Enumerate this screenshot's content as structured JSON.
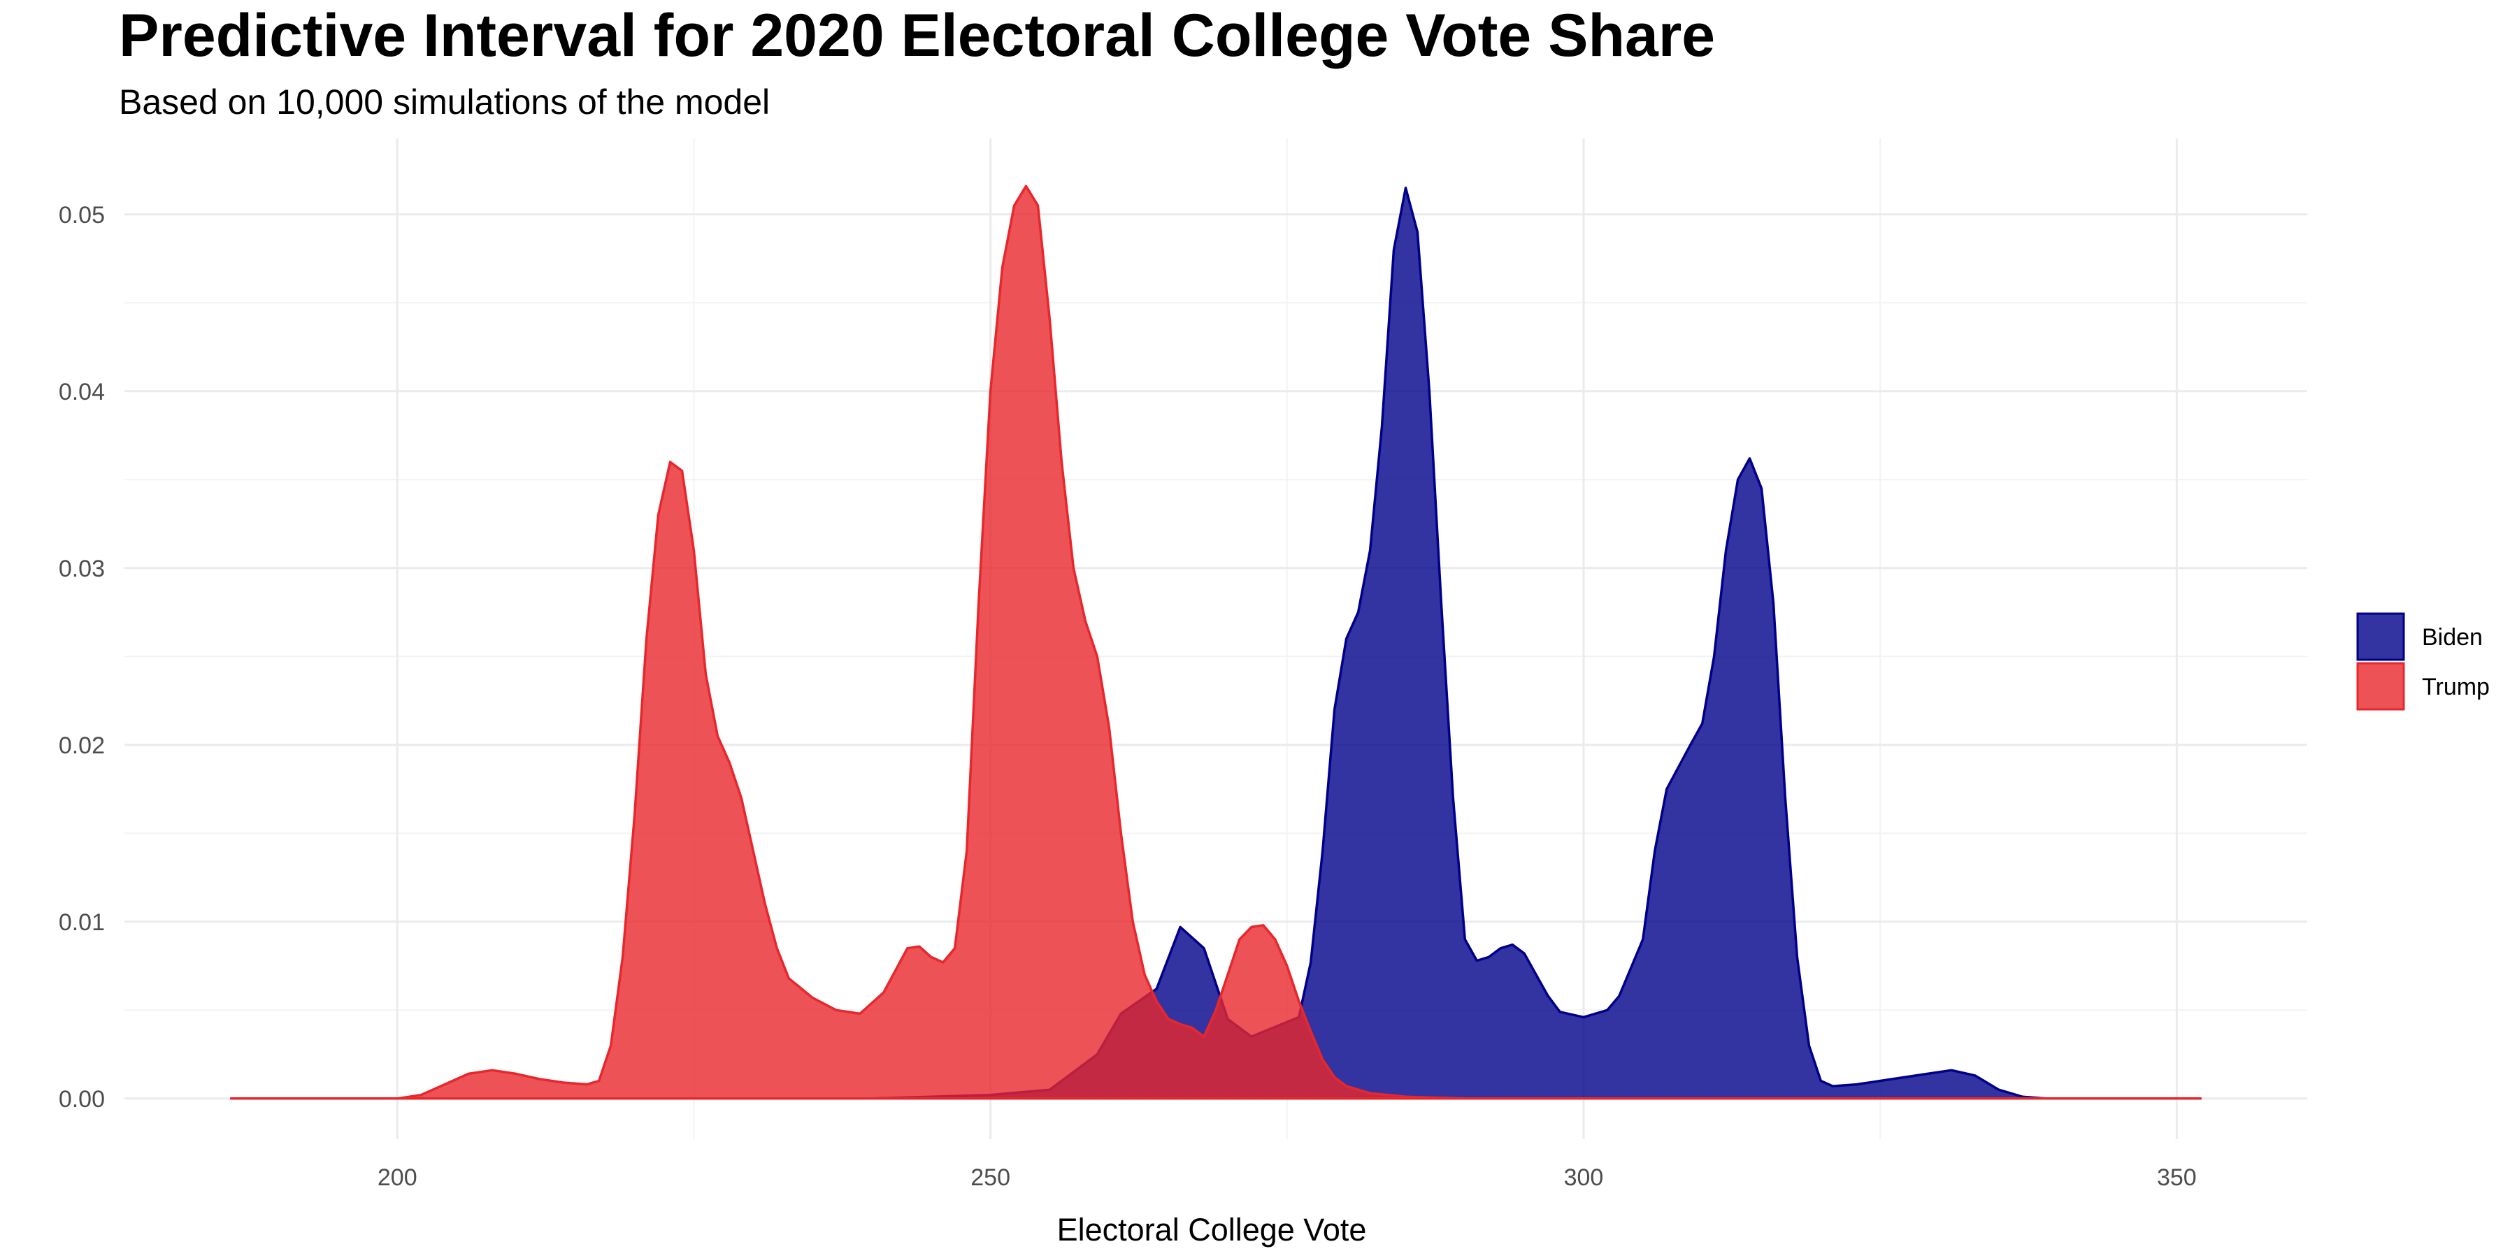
{
  "chart_data": {
    "type": "area",
    "title": "Predictive Interval for 2020 Electoral College Vote Share",
    "subtitle": "Based on 10,000 simulations of the model",
    "xlabel": "Electoral College Vote",
    "ylabel": "",
    "xlim": [
      177,
      361
    ],
    "ylim": [
      -0.0023,
      0.0543
    ],
    "x_ticks": [
      200,
      250,
      300,
      350
    ],
    "x_tick_labels": [
      "200",
      "250",
      "300",
      "350"
    ],
    "y_ticks": [
      0,
      0.01,
      0.02,
      0.03,
      0.04,
      0.05
    ],
    "y_tick_labels": [
      "0.00",
      "0.01",
      "0.02",
      "0.03",
      "0.04",
      "0.05"
    ],
    "grid": true,
    "legend": {
      "placement": "right"
    },
    "series": [
      {
        "name": "Biden",
        "fill": "#00008b",
        "stroke": "#00008b",
        "opacity": 0.8,
        "points": [
          [
            186,
            0
          ],
          [
            200,
            0
          ],
          [
            220,
            0
          ],
          [
            240,
            0
          ],
          [
            250,
            0.0002
          ],
          [
            255,
            0.0005
          ],
          [
            259,
            0.0025
          ],
          [
            261,
            0.0048
          ],
          [
            264,
            0.0062
          ],
          [
            266,
            0.0097
          ],
          [
            268,
            0.0085
          ],
          [
            270,
            0.0045
          ],
          [
            272,
            0.0035
          ],
          [
            276,
            0.0046
          ],
          [
            277,
            0.0077
          ],
          [
            278,
            0.014
          ],
          [
            279,
            0.022
          ],
          [
            280,
            0.026
          ],
          [
            281,
            0.0275
          ],
          [
            282,
            0.031
          ],
          [
            283,
            0.038
          ],
          [
            284,
            0.048
          ],
          [
            285,
            0.0515
          ],
          [
            286,
            0.049
          ],
          [
            287,
            0.04
          ],
          [
            288,
            0.028
          ],
          [
            289,
            0.017
          ],
          [
            290,
            0.009
          ],
          [
            291,
            0.0078
          ],
          [
            292,
            0.008
          ],
          [
            293,
            0.0085
          ],
          [
            294,
            0.0087
          ],
          [
            295,
            0.0082
          ],
          [
            296,
            0.007
          ],
          [
            297,
            0.0058
          ],
          [
            298,
            0.0049
          ],
          [
            300,
            0.0046
          ],
          [
            302,
            0.005
          ],
          [
            303,
            0.0058
          ],
          [
            305,
            0.009
          ],
          [
            306,
            0.014
          ],
          [
            307,
            0.0175
          ],
          [
            309,
            0.02
          ],
          [
            310,
            0.0212
          ],
          [
            311,
            0.025
          ],
          [
            312,
            0.031
          ],
          [
            313,
            0.035
          ],
          [
            314,
            0.0362
          ],
          [
            315,
            0.0345
          ],
          [
            316,
            0.028
          ],
          [
            317,
            0.017
          ],
          [
            318,
            0.008
          ],
          [
            319,
            0.003
          ],
          [
            320,
            0.001
          ],
          [
            321,
            0.0007
          ],
          [
            323,
            0.0008
          ],
          [
            326,
            0.0011
          ],
          [
            329,
            0.0014
          ],
          [
            331,
            0.0016
          ],
          [
            333,
            0.0013
          ],
          [
            335,
            0.0005
          ],
          [
            337,
            0.0001
          ],
          [
            339,
            0
          ],
          [
            352,
            0
          ]
        ]
      },
      {
        "name": "Trump",
        "fill": "#e8272c",
        "stroke": "#e8272c",
        "opacity": 0.8,
        "points": [
          [
            186,
            0
          ],
          [
            200,
            0
          ],
          [
            202,
            0.0002
          ],
          [
            204,
            0.0008
          ],
          [
            206,
            0.0014
          ],
          [
            208,
            0.0016
          ],
          [
            210,
            0.0014
          ],
          [
            212,
            0.0011
          ],
          [
            214,
            0.0009
          ],
          [
            216,
            0.0008
          ],
          [
            217,
            0.001
          ],
          [
            218,
            0.003
          ],
          [
            219,
            0.008
          ],
          [
            220,
            0.016
          ],
          [
            221,
            0.026
          ],
          [
            222,
            0.033
          ],
          [
            223,
            0.036
          ],
          [
            224,
            0.0355
          ],
          [
            225,
            0.031
          ],
          [
            226,
            0.024
          ],
          [
            227,
            0.0205
          ],
          [
            228,
            0.019
          ],
          [
            229,
            0.017
          ],
          [
            230,
            0.014
          ],
          [
            231,
            0.011
          ],
          [
            232,
            0.0085
          ],
          [
            233,
            0.0068
          ],
          [
            235,
            0.0057
          ],
          [
            237,
            0.005
          ],
          [
            239,
            0.0048
          ],
          [
            241,
            0.006
          ],
          [
            243,
            0.0085
          ],
          [
            244,
            0.0086
          ],
          [
            245,
            0.008
          ],
          [
            246,
            0.0077
          ],
          [
            247,
            0.0085
          ],
          [
            248,
            0.014
          ],
          [
            249,
            0.028
          ],
          [
            250,
            0.04
          ],
          [
            251,
            0.047
          ],
          [
            252,
            0.0505
          ],
          [
            253,
            0.0516
          ],
          [
            254,
            0.0505
          ],
          [
            255,
            0.044
          ],
          [
            256,
            0.036
          ],
          [
            257,
            0.03
          ],
          [
            258,
            0.027
          ],
          [
            259,
            0.025
          ],
          [
            260,
            0.021
          ],
          [
            261,
            0.015
          ],
          [
            262,
            0.01
          ],
          [
            263,
            0.007
          ],
          [
            264,
            0.0055
          ],
          [
            265,
            0.0045
          ],
          [
            266,
            0.0042
          ],
          [
            267,
            0.004
          ],
          [
            268,
            0.0035
          ],
          [
            269,
            0.005
          ],
          [
            270,
            0.007
          ],
          [
            271,
            0.009
          ],
          [
            272,
            0.0097
          ],
          [
            273,
            0.0098
          ],
          [
            274,
            0.009
          ],
          [
            275,
            0.0075
          ],
          [
            276,
            0.0055
          ],
          [
            277,
            0.0038
          ],
          [
            278,
            0.0022
          ],
          [
            279,
            0.0012
          ],
          [
            280,
            0.0007
          ],
          [
            282,
            0.0003
          ],
          [
            285,
            0.0001
          ],
          [
            290,
            0
          ],
          [
            352,
            0
          ]
        ]
      }
    ]
  }
}
